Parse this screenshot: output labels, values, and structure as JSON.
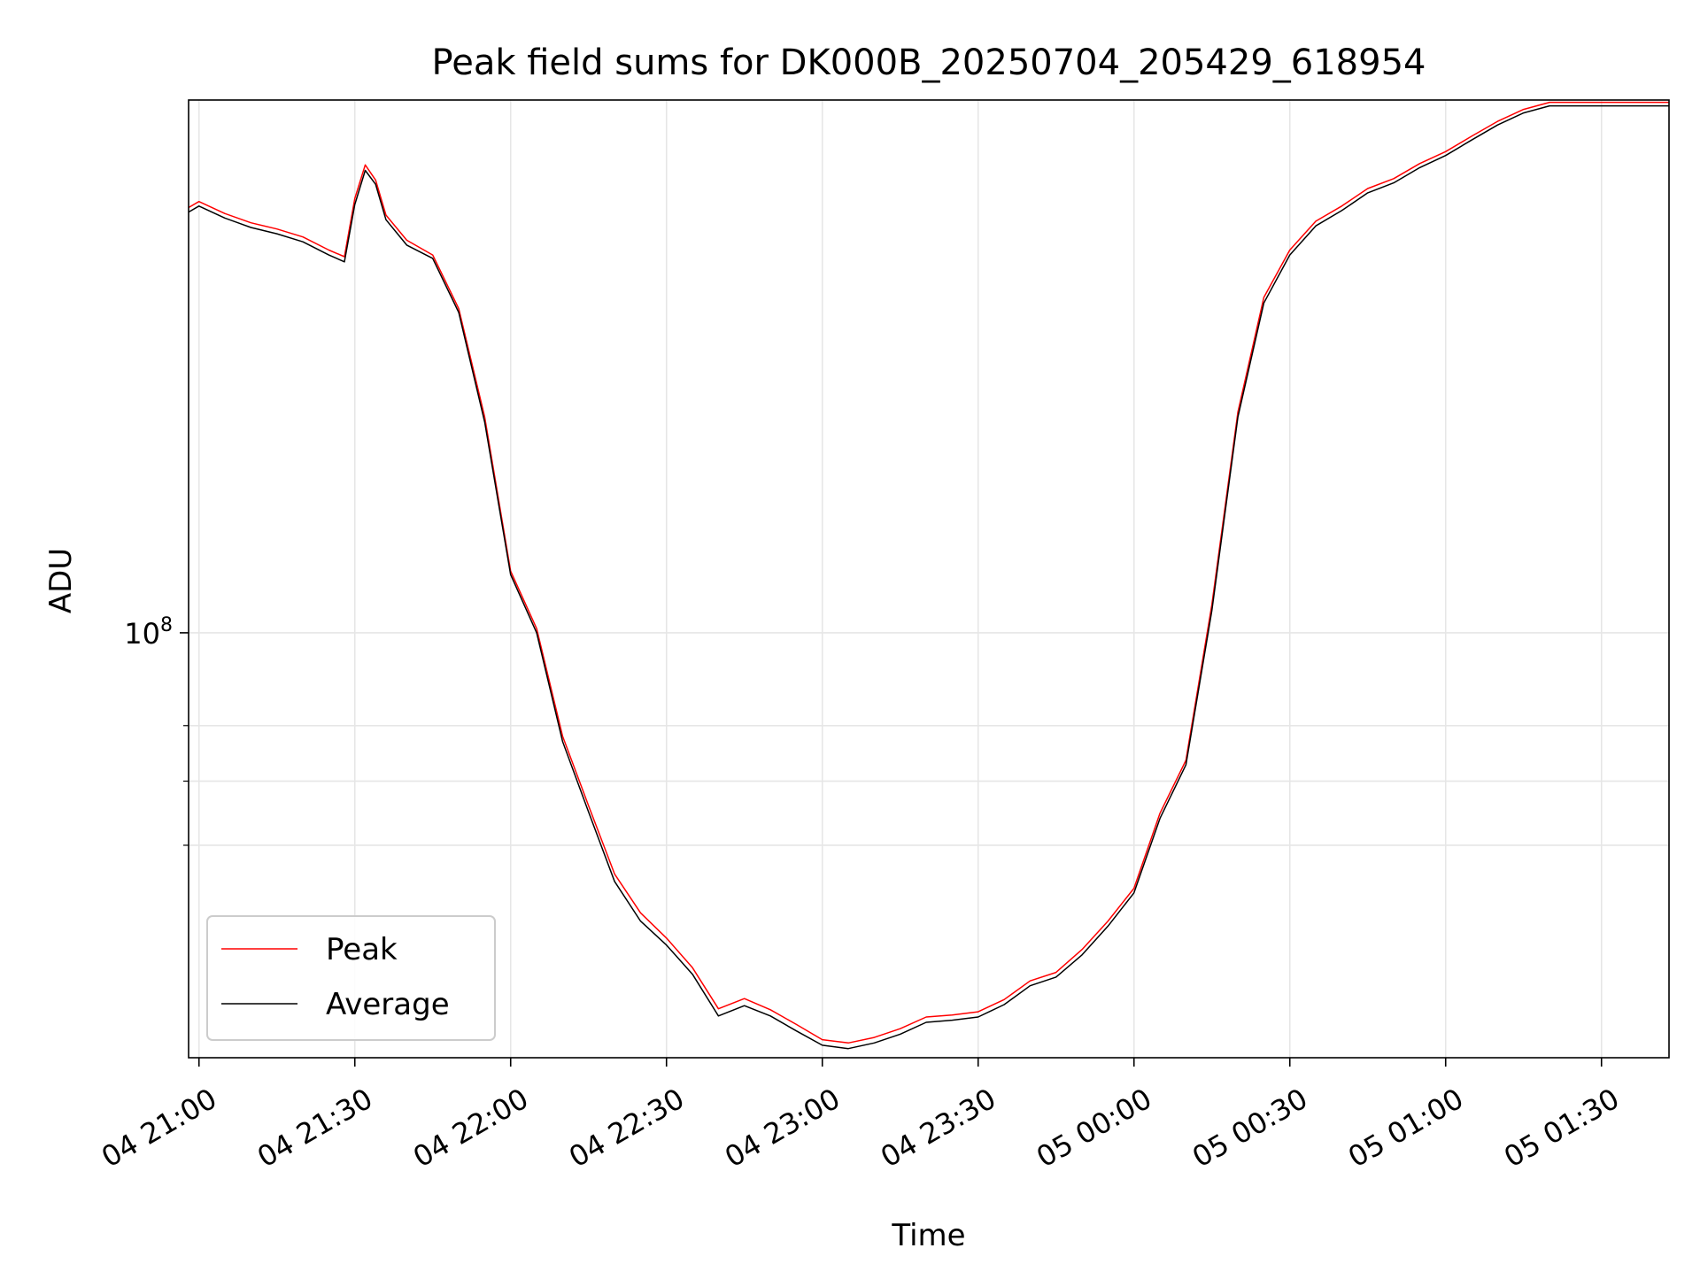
{
  "colors": {
    "peak": "#ff0000",
    "average": "#000000",
    "grid": "#e6e6e6",
    "axis": "#000000"
  },
  "chart_data": {
    "type": "line",
    "title": "Peak field sums for DK000B_20250704_205429_618954",
    "xlabel": "Time",
    "ylabel": "ADU",
    "yscale": "log",
    "grid": true,
    "legend_position": "lower-left",
    "xlim": [
      "2025-07-04 20:58",
      "2025-07-05 01:43"
    ],
    "ylim": [
      36000000,
      360000000
    ],
    "x_ticks": [
      {
        "t": "2025-07-04 21:00",
        "label": "04 21:00"
      },
      {
        "t": "2025-07-04 21:30",
        "label": "04 21:30"
      },
      {
        "t": "2025-07-04 22:00",
        "label": "04 22:00"
      },
      {
        "t": "2025-07-04 22:30",
        "label": "04 22:30"
      },
      {
        "t": "2025-07-04 23:00",
        "label": "04 23:00"
      },
      {
        "t": "2025-07-04 23:30",
        "label": "04 23:30"
      },
      {
        "t": "2025-07-05 00:00",
        "label": "05 00:00"
      },
      {
        "t": "2025-07-05 00:30",
        "label": "05 00:30"
      },
      {
        "t": "2025-07-05 01:00",
        "label": "05 01:00"
      },
      {
        "t": "2025-07-05 01:30",
        "label": "05 01:30"
      }
    ],
    "y_ticks": [
      {
        "value": 100000000,
        "label": "10",
        "exp": "8"
      }
    ],
    "y_minor_ticks": [
      60000000,
      70000000,
      80000000
    ],
    "series": [
      {
        "name": "Peak",
        "x": [
          "2025-07-04 20:58",
          "2025-07-04 21:00",
          "2025-07-04 21:05",
          "2025-07-04 21:10",
          "2025-07-04 21:15",
          "2025-07-04 21:20",
          "2025-07-04 21:25",
          "2025-07-04 21:28",
          "2025-07-04 21:30",
          "2025-07-04 21:32",
          "2025-07-04 21:34",
          "2025-07-04 21:36",
          "2025-07-04 21:40",
          "2025-07-04 21:45",
          "2025-07-04 21:50",
          "2025-07-04 21:55",
          "2025-07-04 22:00",
          "2025-07-04 22:05",
          "2025-07-04 22:10",
          "2025-07-04 22:15",
          "2025-07-04 22:20",
          "2025-07-04 22:25",
          "2025-07-04 22:30",
          "2025-07-04 22:35",
          "2025-07-04 22:40",
          "2025-07-04 22:45",
          "2025-07-04 22:50",
          "2025-07-04 22:55",
          "2025-07-04 23:00",
          "2025-07-04 23:05",
          "2025-07-04 23:10",
          "2025-07-04 23:15",
          "2025-07-04 23:20",
          "2025-07-04 23:25",
          "2025-07-04 23:30",
          "2025-07-04 23:35",
          "2025-07-04 23:40",
          "2025-07-04 23:45",
          "2025-07-04 23:50",
          "2025-07-04 23:55",
          "2025-07-05 00:00",
          "2025-07-05 00:05",
          "2025-07-05 00:10",
          "2025-07-05 00:15",
          "2025-07-05 00:20",
          "2025-07-05 00:25",
          "2025-07-05 00:30",
          "2025-07-05 00:35",
          "2025-07-05 00:40",
          "2025-07-05 00:45",
          "2025-07-05 00:50",
          "2025-07-05 00:55",
          "2025-07-05 01:00",
          "2025-07-05 01:05",
          "2025-07-05 01:10",
          "2025-07-05 01:15",
          "2025-07-05 01:20",
          "2025-07-05 01:25",
          "2025-07-05 01:30",
          "2025-07-05 01:35",
          "2025-07-05 01:40",
          "2025-07-05 01:43"
        ],
        "values": [
          278000000,
          282000000,
          274000000,
          268000000,
          264000000,
          259000000,
          251000000,
          247000000,
          284000000,
          308000000,
          297000000,
          273000000,
          257000000,
          248000000,
          218000000,
          168000000,
          116000000,
          101000000,
          78000000,
          66000000,
          56000000,
          51000000,
          48000000,
          44700000,
          40500000,
          41500000,
          40400000,
          39000000,
          37600000,
          37300000,
          37800000,
          38600000,
          39700000,
          39900000,
          40200000,
          41400000,
          43300000,
          44200000,
          46700000,
          50000000,
          54100000,
          64800000,
          73600000,
          107000000,
          170000000,
          224000000,
          251000000,
          269000000,
          279000000,
          291000000,
          298000000,
          309000000,
          318000000,
          330000000,
          342000000,
          352000000,
          358000000,
          358000000,
          358000000,
          358000000,
          358000000,
          358000000
        ]
      },
      {
        "name": "Average",
        "x": [
          "2025-07-04 20:58",
          "2025-07-04 21:00",
          "2025-07-04 21:05",
          "2025-07-04 21:10",
          "2025-07-04 21:15",
          "2025-07-04 21:20",
          "2025-07-04 21:25",
          "2025-07-04 21:28",
          "2025-07-04 21:30",
          "2025-07-04 21:32",
          "2025-07-04 21:34",
          "2025-07-04 21:36",
          "2025-07-04 21:40",
          "2025-07-04 21:45",
          "2025-07-04 21:50",
          "2025-07-04 21:55",
          "2025-07-04 22:00",
          "2025-07-04 22:05",
          "2025-07-04 22:10",
          "2025-07-04 22:15",
          "2025-07-04 22:20",
          "2025-07-04 22:25",
          "2025-07-04 22:30",
          "2025-07-04 22:35",
          "2025-07-04 22:40",
          "2025-07-04 22:45",
          "2025-07-04 22:50",
          "2025-07-04 22:55",
          "2025-07-04 23:00",
          "2025-07-04 23:05",
          "2025-07-04 23:10",
          "2025-07-04 23:15",
          "2025-07-04 23:20",
          "2025-07-04 23:25",
          "2025-07-04 23:30",
          "2025-07-04 23:35",
          "2025-07-04 23:40",
          "2025-07-04 23:45",
          "2025-07-04 23:50",
          "2025-07-04 23:55",
          "2025-07-05 00:00",
          "2025-07-05 00:05",
          "2025-07-05 00:10",
          "2025-07-05 00:15",
          "2025-07-05 00:20",
          "2025-07-05 00:25",
          "2025-07-05 00:30",
          "2025-07-05 00:35",
          "2025-07-05 00:40",
          "2025-07-05 00:45",
          "2025-07-05 00:50",
          "2025-07-05 00:55",
          "2025-07-05 01:00",
          "2025-07-05 01:05",
          "2025-07-05 01:10",
          "2025-07-05 01:15",
          "2025-07-05 01:20",
          "2025-07-05 01:25",
          "2025-07-05 01:30",
          "2025-07-05 01:35",
          "2025-07-05 01:40",
          "2025-07-05 01:43"
        ],
        "values": [
          275000000,
          279000000,
          271000000,
          265000000,
          261000000,
          256000000,
          248000000,
          244000000,
          280000000,
          304000000,
          294000000,
          270000000,
          254000000,
          246000000,
          216000000,
          166000000,
          115000000,
          100000000,
          77000000,
          65000000,
          55000000,
          50000000,
          47200000,
          44000000,
          39800000,
          40800000,
          39800000,
          38400000,
          37100000,
          36800000,
          37300000,
          38100000,
          39200000,
          39400000,
          39700000,
          40900000,
          42800000,
          43700000,
          46100000,
          49400000,
          53500000,
          64000000,
          72800000,
          105500000,
          168000000,
          221000000,
          248000000,
          266000000,
          276000000,
          288000000,
          295000000,
          306000000,
          315000000,
          327000000,
          339000000,
          349000000,
          355000000,
          355000000,
          355000000,
          355000000,
          355000000,
          355000000
        ]
      }
    ]
  }
}
